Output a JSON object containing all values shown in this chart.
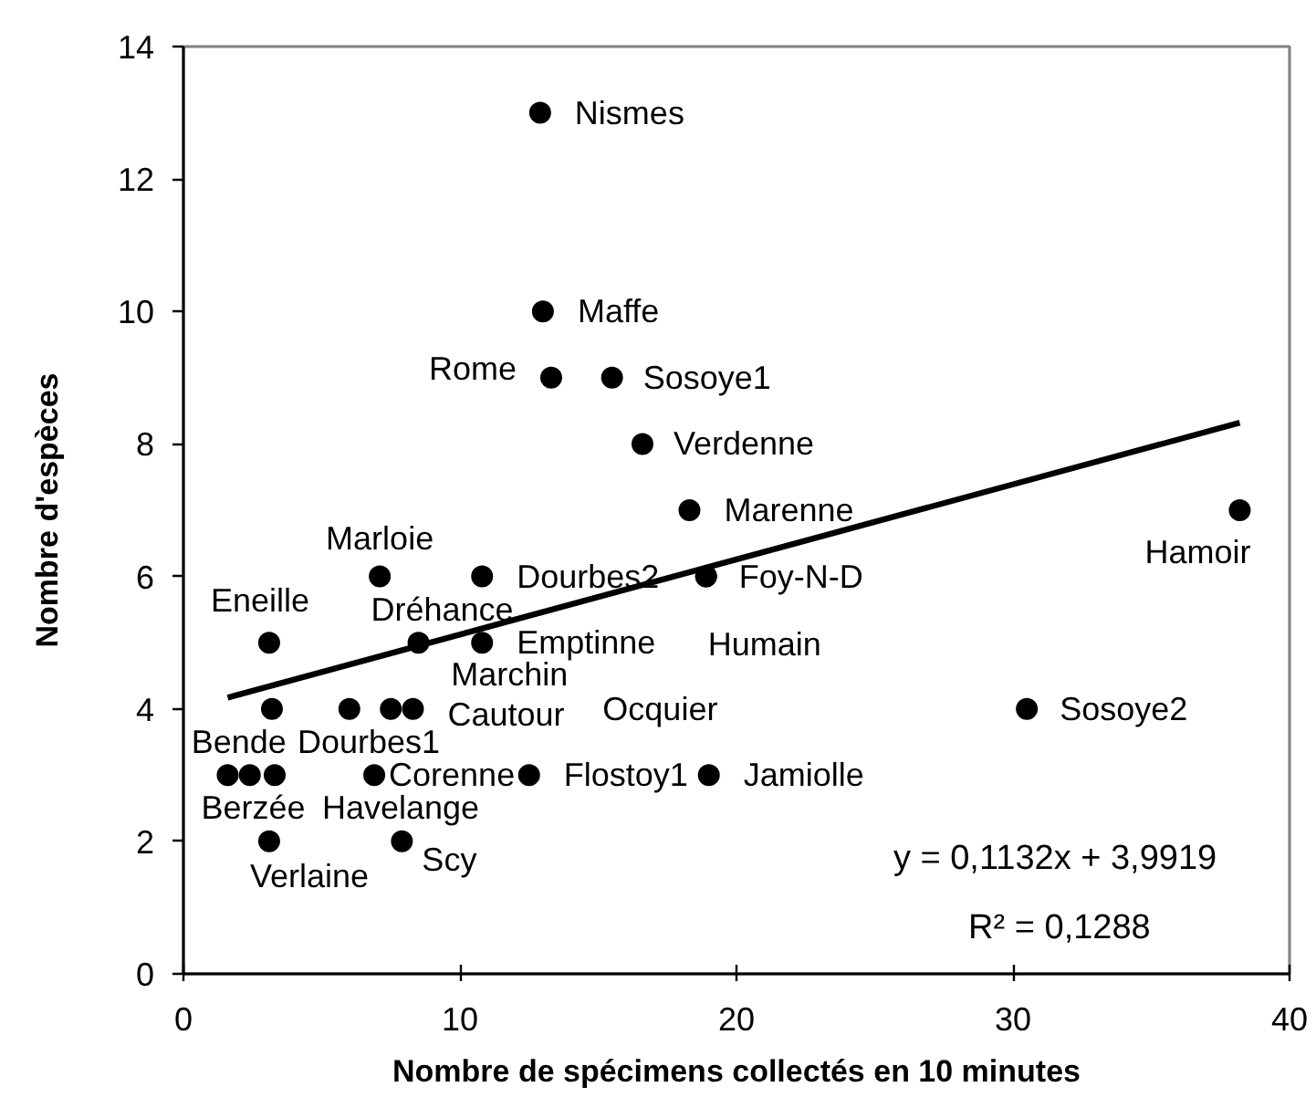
{
  "chart_data": {
    "type": "scatter",
    "xlabel": "Nombre de spécimens collectés en 10 minutes",
    "ylabel": "Nombre d'espèces",
    "xlim": [
      0,
      40
    ],
    "ylim": [
      0,
      14
    ],
    "xticks": [
      0,
      10,
      20,
      30,
      40
    ],
    "yticks": [
      0,
      2,
      4,
      6,
      8,
      10,
      12,
      14
    ],
    "grid": false,
    "marker": "circle",
    "series": [
      {
        "color": "#000000",
        "x": [
          12.9,
          13.0,
          13.3,
          15.5,
          16.6,
          18.3,
          38.2,
          7.1,
          10.8,
          18.9,
          18.9,
          3.1,
          8.5,
          10.8,
          3.2,
          6.0,
          7.5,
          8.3,
          30.5,
          1.6,
          2.4,
          3.3,
          6.9,
          12.5,
          19.0,
          3.1,
          7.9
        ],
        "values": [
          13,
          10,
          9,
          9,
          8,
          7,
          7,
          6,
          6,
          6,
          6,
          5,
          5,
          5,
          4,
          4,
          4,
          4,
          4,
          3,
          3,
          3,
          3,
          3,
          3,
          2,
          2
        ]
      },
      {
        "type": "line",
        "color": "#000000",
        "line_style": "solid",
        "marker": "none",
        "x": [
          1.6,
          38.2
        ],
        "values": [
          4.17,
          8.32
        ]
      }
    ],
    "annotations": [
      {
        "text": "Nismes",
        "x": 12.9,
        "y": 13
      },
      {
        "text": "Maffe",
        "x": 13.0,
        "y": 10
      },
      {
        "text": "Rome",
        "x": 13.3,
        "y": 9
      },
      {
        "text": "Sosoye1",
        "x": 15.5,
        "y": 9
      },
      {
        "text": "Verdenne",
        "x": 16.6,
        "y": 8
      },
      {
        "text": "Marenne",
        "x": 18.3,
        "y": 7
      },
      {
        "text": "Hamoir",
        "x": 38.2,
        "y": 7
      },
      {
        "text": "Marloie",
        "x": 7.1,
        "y": 6
      },
      {
        "text": "Dourbes2",
        "x": 10.8,
        "y": 6
      },
      {
        "text": "Foy-N-D",
        "x": 18.9,
        "y": 6
      },
      {
        "text": "Humain",
        "x": 18.9,
        "y": 6
      },
      {
        "text": "Eneille",
        "x": 3.1,
        "y": 5
      },
      {
        "text": "Dréhance",
        "x": 8.5,
        "y": 5
      },
      {
        "text": "Emptinne",
        "x": 10.8,
        "y": 5
      },
      {
        "text": "Dourbes1",
        "x": 3.2,
        "y": 4
      },
      {
        "text": "Marchin",
        "x": 7.5,
        "y": 4
      },
      {
        "text": "Cautour",
        "x": 8.3,
        "y": 4
      },
      "Ocquier",
      {
        "text": "Sosoye2",
        "x": 30.5,
        "y": 4
      },
      {
        "text": "Berzée",
        "x": 1.6,
        "y": 3
      },
      {
        "text": "Bende",
        "x": 2.4,
        "y": 3
      },
      {
        "text": "Havelange",
        "x": 3.3,
        "y": 3
      },
      {
        "text": "Corenne",
        "x": 6.9,
        "y": 3
      },
      {
        "text": "Flostoy1",
        "x": 12.5,
        "y": 3
      },
      {
        "text": "Jamiolle",
        "x": 19.0,
        "y": 3
      },
      {
        "text": "Verlaine",
        "x": 3.1,
        "y": 2
      },
      {
        "text": "Scy",
        "x": 7.9,
        "y": 2
      },
      "y = 0,1132x + 3,9919",
      "R² = 0,1288"
    ]
  }
}
